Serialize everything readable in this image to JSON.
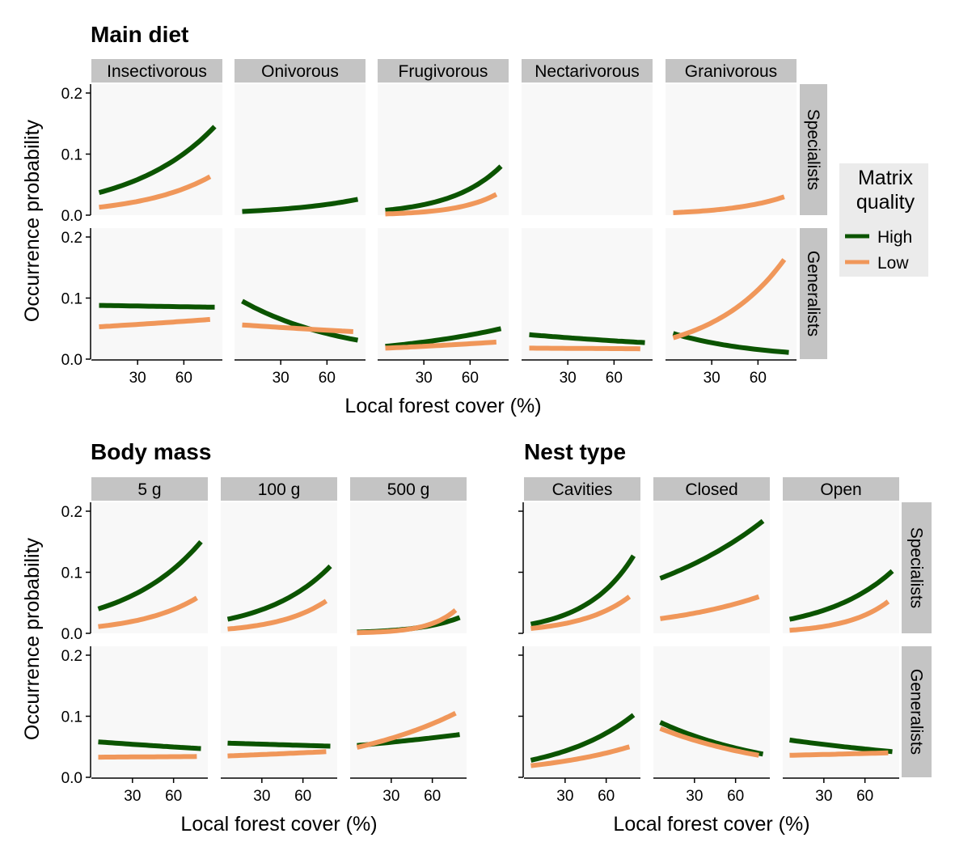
{
  "colors": {
    "high": "#0b5400",
    "low": "#f0975a",
    "panel_bg": "#f8f8f8",
    "strip_bg": "#c4c4c4"
  },
  "legend": {
    "title_line1": "Matrix",
    "title_line2": "quality",
    "high_label": "High",
    "low_label": "Low"
  },
  "chart_data": [
    {
      "type": "line",
      "title": "Main diet",
      "xlabel": "Local forest cover (%)",
      "ylabel": "Occurrence probability",
      "x_ticks": [
        "30",
        "60"
      ],
      "y_ticks": [
        "0.0",
        "0.1",
        "0.2"
      ],
      "ylim": [
        0,
        0.2
      ],
      "columns": [
        "Insectivorous",
        "Onivorous",
        "Frugivorous",
        "Nectarivorous",
        "Granivorous"
      ],
      "rows": [
        "Specialists",
        "Generalists"
      ],
      "panels": [
        {
          "row": 0,
          "col": 0,
          "series": [
            {
              "name": "High",
              "x": [
                5,
                80
              ],
              "y": [
                0.037,
                0.145
              ]
            },
            {
              "name": "Low",
              "x": [
                5,
                77
              ],
              "y": [
                0.013,
                0.063
              ]
            }
          ]
        },
        {
          "row": 0,
          "col": 1,
          "series": [
            {
              "name": "High",
              "x": [
                5,
                80
              ],
              "y": [
                0.006,
                0.026
              ]
            }
          ]
        },
        {
          "row": 0,
          "col": 2,
          "series": [
            {
              "name": "High",
              "x": [
                5,
                80
              ],
              "y": [
                0.008,
                0.08
              ]
            },
            {
              "name": "Low",
              "x": [
                5,
                77
              ],
              "y": [
                0.002,
                0.034
              ]
            }
          ]
        },
        {
          "row": 0,
          "col": 3,
          "series": []
        },
        {
          "row": 0,
          "col": 4,
          "series": [
            {
              "name": "Low",
              "x": [
                5,
                77
              ],
              "y": [
                0.004,
                0.03
              ]
            }
          ]
        },
        {
          "row": 1,
          "col": 0,
          "series": [
            {
              "name": "High",
              "x": [
                5,
                80
              ],
              "y": [
                0.088,
                0.085
              ]
            },
            {
              "name": "Low",
              "x": [
                5,
                77
              ],
              "y": [
                0.053,
                0.065
              ]
            }
          ]
        },
        {
          "row": 1,
          "col": 1,
          "series": [
            {
              "name": "High",
              "x": [
                5,
                80
              ],
              "y": [
                0.095,
                0.031
              ]
            },
            {
              "name": "Low",
              "x": [
                5,
                77
              ],
              "y": [
                0.056,
                0.045
              ]
            }
          ]
        },
        {
          "row": 1,
          "col": 2,
          "series": [
            {
              "name": "High",
              "x": [
                5,
                80
              ],
              "y": [
                0.021,
                0.05
              ]
            },
            {
              "name": "Low",
              "x": [
                5,
                77
              ],
              "y": [
                0.018,
                0.028
              ]
            }
          ]
        },
        {
          "row": 1,
          "col": 3,
          "series": [
            {
              "name": "High",
              "x": [
                5,
                80
              ],
              "y": [
                0.04,
                0.027
              ]
            },
            {
              "name": "Low",
              "x": [
                5,
                77
              ],
              "y": [
                0.018,
                0.017
              ]
            }
          ]
        },
        {
          "row": 1,
          "col": 4,
          "series": [
            {
              "name": "High",
              "x": [
                5,
                80
              ],
              "y": [
                0.042,
                0.011
              ]
            },
            {
              "name": "Low",
              "x": [
                5,
                77
              ],
              "y": [
                0.035,
                0.163
              ]
            }
          ]
        }
      ]
    },
    {
      "type": "line",
      "title": "Body mass",
      "xlabel": "Local forest cover (%)",
      "ylabel": "Occurrence probability",
      "x_ticks": [
        "30",
        "60"
      ],
      "y_ticks": [
        "0.0",
        "0.1",
        "0.2"
      ],
      "ylim": [
        0,
        0.2
      ],
      "columns": [
        "5 g",
        "100 g",
        "500 g"
      ],
      "rows": [],
      "panels": [
        {
          "row": 0,
          "col": 0,
          "series": [
            {
              "name": "High",
              "x": [
                5,
                80
              ],
              "y": [
                0.04,
                0.15
              ]
            },
            {
              "name": "Low",
              "x": [
                5,
                77
              ],
              "y": [
                0.011,
                0.058
              ]
            }
          ]
        },
        {
          "row": 0,
          "col": 1,
          "series": [
            {
              "name": "High",
              "x": [
                5,
                80
              ],
              "y": [
                0.023,
                0.11
              ]
            },
            {
              "name": "Low",
              "x": [
                5,
                77
              ],
              "y": [
                0.007,
                0.053
              ]
            }
          ]
        },
        {
          "row": 0,
          "col": 2,
          "series": [
            {
              "name": "High",
              "x": [
                5,
                80
              ],
              "y": [
                0.002,
                0.026
              ]
            },
            {
              "name": "Low",
              "x": [
                5,
                77
              ],
              "y": [
                0.001,
                0.038
              ]
            }
          ]
        },
        {
          "row": 1,
          "col": 0,
          "series": [
            {
              "name": "High",
              "x": [
                5,
                80
              ],
              "y": [
                0.058,
                0.047
              ]
            },
            {
              "name": "Low",
              "x": [
                5,
                77
              ],
              "y": [
                0.033,
                0.034
              ]
            }
          ]
        },
        {
          "row": 1,
          "col": 1,
          "series": [
            {
              "name": "High",
              "x": [
                5,
                80
              ],
              "y": [
                0.056,
                0.051
              ]
            },
            {
              "name": "Low",
              "x": [
                5,
                77
              ],
              "y": [
                0.035,
                0.042
              ]
            }
          ]
        },
        {
          "row": 1,
          "col": 2,
          "series": [
            {
              "name": "High",
              "x": [
                5,
                80
              ],
              "y": [
                0.052,
                0.07
              ]
            },
            {
              "name": "Low",
              "x": [
                5,
                77
              ],
              "y": [
                0.049,
                0.105
              ]
            }
          ]
        }
      ]
    },
    {
      "type": "line",
      "title": "Nest type",
      "xlabel": "Local forest cover (%)",
      "ylabel": "",
      "x_ticks": [
        "30",
        "60"
      ],
      "y_ticks": [],
      "ylim": [
        0,
        0.2
      ],
      "columns": [
        "Cavities",
        "Closed",
        "Open"
      ],
      "rows": [
        "Specialists",
        "Generalists"
      ],
      "panels": [
        {
          "row": 0,
          "col": 0,
          "series": [
            {
              "name": "High",
              "x": [
                5,
                80
              ],
              "y": [
                0.015,
                0.127
              ]
            },
            {
              "name": "Low",
              "x": [
                5,
                77
              ],
              "y": [
                0.008,
                0.06
              ]
            }
          ]
        },
        {
          "row": 0,
          "col": 1,
          "series": [
            {
              "name": "High",
              "x": [
                5,
                80
              ],
              "y": [
                0.09,
                0.184
              ]
            },
            {
              "name": "Low",
              "x": [
                5,
                77
              ],
              "y": [
                0.024,
                0.06
              ]
            }
          ]
        },
        {
          "row": 0,
          "col": 2,
          "series": [
            {
              "name": "High",
              "x": [
                5,
                80
              ],
              "y": [
                0.023,
                0.102
              ]
            },
            {
              "name": "Low",
              "x": [
                5,
                77
              ],
              "y": [
                0.005,
                0.052
              ]
            }
          ]
        },
        {
          "row": 1,
          "col": 0,
          "series": [
            {
              "name": "High",
              "x": [
                5,
                80
              ],
              "y": [
                0.028,
                0.102
              ]
            },
            {
              "name": "Low",
              "x": [
                5,
                77
              ],
              "y": [
                0.019,
                0.05
              ]
            }
          ]
        },
        {
          "row": 1,
          "col": 1,
          "series": [
            {
              "name": "High",
              "x": [
                5,
                80
              ],
              "y": [
                0.09,
                0.038
              ]
            },
            {
              "name": "Low",
              "x": [
                5,
                77
              ],
              "y": [
                0.08,
                0.036
              ]
            }
          ]
        },
        {
          "row": 1,
          "col": 2,
          "series": [
            {
              "name": "High",
              "x": [
                5,
                80
              ],
              "y": [
                0.061,
                0.042
              ]
            },
            {
              "name": "Low",
              "x": [
                5,
                77
              ],
              "y": [
                0.036,
                0.04
              ]
            }
          ]
        }
      ]
    }
  ]
}
